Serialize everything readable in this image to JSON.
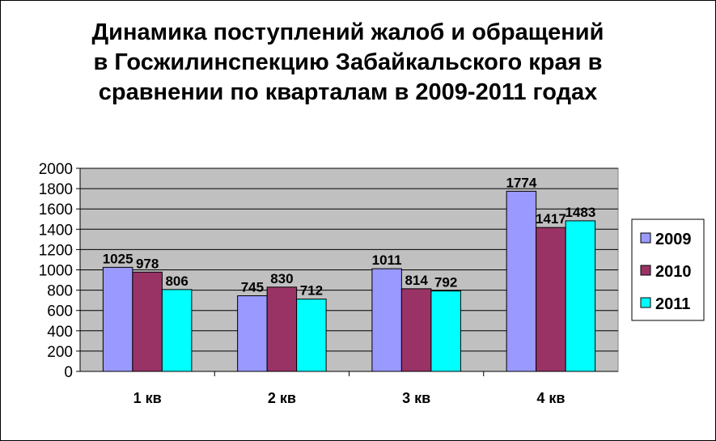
{
  "title_lines": [
    "Динамика поступлений жалоб и обращений",
    "в Госжилинспекцию Забайкальского края в",
    "сравнении по кварталам в 2009-2011 годах"
  ],
  "chart_data": {
    "type": "bar",
    "title": "Динамика поступлений жалоб и обращений в Госжилинспекцию Забайкальского края в сравнении по кварталам в 2009-2011 годах",
    "categories": [
      "1 кв",
      "2 кв",
      "3 кв",
      "4 кв"
    ],
    "series": [
      {
        "name": "2009",
        "values": [
          1025,
          745,
          1011,
          1774
        ],
        "color": "#9999ff"
      },
      {
        "name": "2010",
        "values": [
          978,
          830,
          814,
          1417
        ],
        "color": "#993366"
      },
      {
        "name": "2011",
        "values": [
          806,
          712,
          792,
          1483
        ],
        "color": "#00ffff"
      }
    ],
    "yticks": [
      0,
      200,
      400,
      600,
      800,
      1000,
      1200,
      1400,
      1600,
      1800,
      2000
    ],
    "ylim": [
      0,
      2000
    ],
    "grid": true,
    "plot_background": "#c0c0c0",
    "legend_position": "right",
    "data_labels": true
  }
}
